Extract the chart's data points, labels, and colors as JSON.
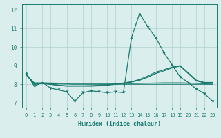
{
  "xlabel": "Humidex (Indice chaleur)",
  "x": [
    0,
    1,
    2,
    3,
    4,
    5,
    6,
    7,
    8,
    9,
    10,
    11,
    12,
    13,
    14,
    15,
    16,
    17,
    18,
    19,
    20,
    21,
    22,
    23
  ],
  "line_main": [
    8.6,
    7.9,
    8.1,
    7.8,
    7.7,
    7.6,
    7.1,
    7.55,
    7.65,
    7.6,
    7.55,
    7.6,
    7.55,
    10.5,
    11.8,
    11.1,
    10.5,
    9.7,
    9.05,
    8.4,
    8.1,
    7.75,
    7.5,
    7.1
  ],
  "line_rise1": [
    8.55,
    8.0,
    8.05,
    8.0,
    7.95,
    7.9,
    7.9,
    7.9,
    7.9,
    7.92,
    7.95,
    8.0,
    8.05,
    8.12,
    8.22,
    8.38,
    8.58,
    8.72,
    8.88,
    8.98,
    8.58,
    8.18,
    8.08,
    8.08
  ],
  "line_rise2": [
    8.55,
    8.0,
    8.05,
    8.0,
    7.95,
    7.92,
    7.92,
    7.92,
    7.93,
    7.95,
    7.98,
    8.02,
    8.07,
    8.14,
    8.26,
    8.44,
    8.65,
    8.78,
    8.92,
    9.0,
    8.62,
    8.22,
    8.1,
    8.1
  ],
  "line_flat1": [
    8.52,
    8.08,
    8.08,
    8.07,
    8.06,
    8.04,
    8.04,
    8.04,
    8.04,
    8.04,
    8.04,
    8.04,
    8.04,
    8.04,
    8.05,
    8.06,
    8.07,
    8.08,
    8.08,
    8.08,
    8.07,
    8.05,
    8.03,
    8.01
  ],
  "line_flat2": [
    8.5,
    8.05,
    8.04,
    8.03,
    8.02,
    8.01,
    8.0,
    8.0,
    8.0,
    8.0,
    8.0,
    8.0,
    8.0,
    8.0,
    8.0,
    8.0,
    8.0,
    8.0,
    8.0,
    8.0,
    8.0,
    8.0,
    8.0,
    8.0
  ],
  "bg_color": "#daeeed",
  "line_color": "#1a7a6e",
  "grid_color": "#b0d0ce",
  "ylim": [
    6.75,
    12.3
  ],
  "yticks": [
    7,
    8,
    9,
    10,
    11,
    12
  ],
  "xlim": [
    -0.5,
    23.5
  ]
}
